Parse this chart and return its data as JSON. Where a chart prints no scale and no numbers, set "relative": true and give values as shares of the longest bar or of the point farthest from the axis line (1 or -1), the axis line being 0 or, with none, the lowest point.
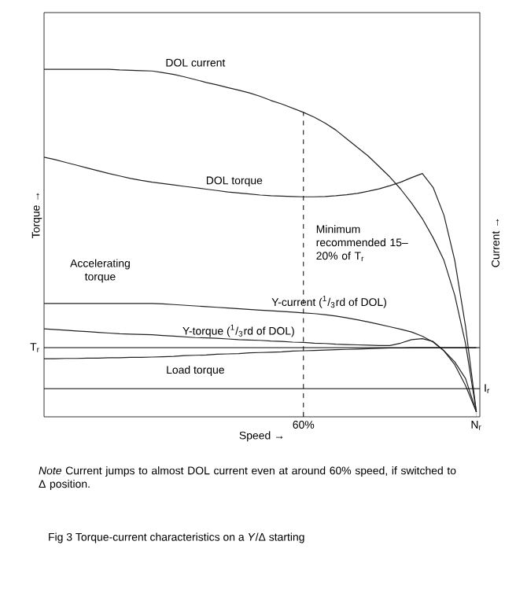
{
  "chart_data": {
    "type": "line",
    "relative": true,
    "title": "Fig 3 Torque-current characteristics on a *Y*/Δ starting",
    "xlabel": "Speed →",
    "ylabel": "Torque →",
    "y2label": "Current →",
    "categories": [
      null,
      null,
      null,
      null,
      null,
      null,
      null,
      null,
      null,
      null,
      null,
      null,
      null,
      null,
      null,
      null,
      null,
      null,
      null,
      null,
      null,
      null,
      null,
      null,
      "60%",
      null,
      null,
      null,
      null,
      null,
      null,
      null,
      null,
      null,
      null,
      null,
      null,
      null,
      null,
      null,
      "N$_{r}$"
    ],
    "marker": "none",
    "line_style": "solid",
    "series": [
      {
        "name": "DOL current",
        "color": "#222222",
        "values": [
          1.0,
          1.0,
          1.0,
          1.0,
          1.0,
          1.0,
          1.0,
          0.998,
          0.997,
          0.996,
          0.995,
          0.99,
          0.985,
          0.978,
          0.97,
          0.962,
          0.955,
          0.947,
          0.94,
          0.932,
          0.922,
          0.91,
          0.9,
          0.888,
          0.876,
          0.862,
          0.845,
          0.825,
          0.8,
          0.775,
          0.75,
          0.72,
          0.69,
          0.655,
          0.615,
          0.57,
          0.515,
          0.45,
          0.35,
          0.21,
          0.014
        ]
      },
      {
        "name": "DOL torque",
        "color": "#222222",
        "values": [
          0.747,
          0.74,
          0.732,
          0.724,
          0.716,
          0.708,
          0.7,
          0.693,
          0.686,
          0.68,
          0.675,
          0.671,
          0.667,
          0.663,
          0.659,
          0.655,
          0.651,
          0.647,
          0.644,
          0.641,
          0.638,
          0.636,
          0.635,
          0.634,
          0.633,
          0.633,
          0.634,
          0.636,
          0.639,
          0.643,
          0.649,
          0.656,
          0.665,
          0.675,
          0.688,
          0.7,
          0.66,
          0.58,
          0.45,
          0.26,
          0.014
        ]
      },
      {
        "name": "Y-current ($^{1}$/$_{3}$rd of DOL)",
        "color": "#222222",
        "values": [
          0.326,
          0.326,
          0.326,
          0.326,
          0.326,
          0.326,
          0.326,
          0.326,
          0.326,
          0.326,
          0.326,
          0.325,
          0.323,
          0.321,
          0.319,
          0.317,
          0.315,
          0.313,
          0.311,
          0.309,
          0.307,
          0.305,
          0.303,
          0.301,
          0.299,
          0.297,
          0.294,
          0.29,
          0.285,
          0.279,
          0.273,
          0.266,
          0.259,
          0.252,
          0.244,
          0.232,
          0.215,
          0.19,
          0.158,
          0.11,
          0.014
        ]
      },
      {
        "name": "Y-torque ($^{1}$/$_{3}$rd of DOL)",
        "color": "#222222",
        "values": [
          0.253,
          0.251,
          0.249,
          0.247,
          0.245,
          0.243,
          0.241,
          0.239,
          0.238,
          0.237,
          0.236,
          0.234,
          0.232,
          0.23,
          0.228,
          0.227,
          0.226,
          0.224,
          0.222,
          0.221,
          0.22,
          0.218,
          0.217,
          0.215,
          0.214,
          0.212,
          0.211,
          0.209,
          0.208,
          0.207,
          0.206,
          0.205,
          0.205,
          0.212,
          0.222,
          0.225,
          0.217,
          0.19,
          0.15,
          0.09,
          0.014
        ]
      },
      {
        "name": "Load torque",
        "color": "#222222",
        "values": [
          0.167,
          0.167,
          0.168,
          0.168,
          0.169,
          0.169,
          0.17,
          0.17,
          0.171,
          0.171,
          0.172,
          0.173,
          0.174,
          0.176,
          0.177,
          0.178,
          0.18,
          0.181,
          0.182,
          0.184,
          0.185,
          0.186,
          0.187,
          0.189,
          0.19,
          0.191,
          0.192,
          0.193,
          0.194,
          0.195,
          0.196,
          0.197,
          0.198,
          0.198,
          0.199,
          0.199,
          0.199,
          0.199,
          0.199,
          0.199,
          0.199
        ]
      }
    ],
    "ref_lines": [
      {
        "axis": "x",
        "value": "60%",
        "line_style": "dashed"
      },
      {
        "axis": "y",
        "value": 0.199,
        "label": "T$_{r}$"
      },
      {
        "axis": "y",
        "value": 0.081,
        "label": "I$_{r}$"
      }
    ],
    "annotations": [
      "Accelerating torque",
      "Minimum recommended 15–20% of T$_{r}$",
      "*Note* Current jumps to almost DOL current even at around 60% speed, if switched to Δ position."
    ]
  }
}
